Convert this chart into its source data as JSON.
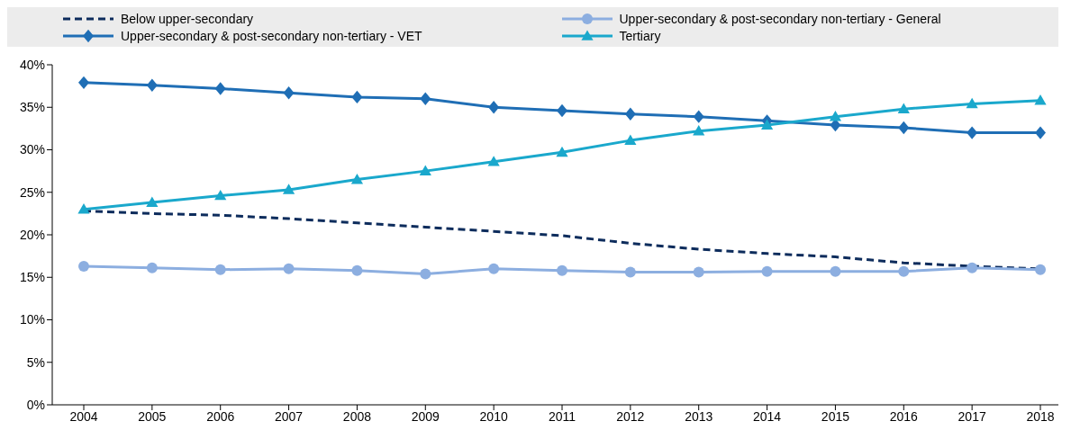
{
  "chart_data": {
    "type": "line",
    "categories": [
      "2004",
      "2005",
      "2006",
      "2007",
      "2008",
      "2009",
      "2010",
      "2011",
      "2012",
      "2013",
      "2014",
      "2015",
      "2016",
      "2017",
      "2018"
    ],
    "series": [
      {
        "name": "Below upper-secondary",
        "color": "#0d2c5c",
        "line_style": "dashed",
        "marker": "none",
        "values": [
          22.8,
          22.5,
          22.3,
          21.9,
          21.4,
          20.9,
          20.4,
          19.9,
          19.0,
          18.3,
          17.8,
          17.4,
          16.7,
          16.3,
          16.0
        ]
      },
      {
        "name": "Upper-secondary & post-secondary non-tertiary - VET",
        "color": "#1f6eb5",
        "line_style": "solid",
        "marker": "diamond",
        "values": [
          37.9,
          37.6,
          37.2,
          36.7,
          36.2,
          36.0,
          35.0,
          34.6,
          34.2,
          33.9,
          33.4,
          32.9,
          32.6,
          32.0,
          32.0
        ]
      },
      {
        "name": "Upper-secondary & post-secondary non-tertiary - General",
        "color": "#8caee0",
        "line_style": "solid",
        "marker": "circle",
        "values": [
          16.3,
          16.1,
          15.9,
          16.0,
          15.8,
          15.4,
          16.0,
          15.8,
          15.6,
          15.6,
          15.7,
          15.7,
          15.7,
          16.1,
          15.9
        ]
      },
      {
        "name": "Tertiary",
        "color": "#1aa8cc",
        "line_style": "solid",
        "marker": "triangle",
        "values": [
          23.0,
          23.8,
          24.6,
          25.3,
          26.5,
          27.5,
          28.6,
          29.7,
          31.1,
          32.2,
          32.9,
          33.9,
          34.8,
          35.4,
          35.8
        ]
      }
    ],
    "ylim": [
      0,
      40
    ],
    "yticks": [
      {
        "value": 0,
        "label": "0%"
      },
      {
        "value": 5,
        "label": "5%"
      },
      {
        "value": 10,
        "label": "10%"
      },
      {
        "value": 15,
        "label": "15%"
      },
      {
        "value": 20,
        "label": "20%"
      },
      {
        "value": 25,
        "label": "25%"
      },
      {
        "value": 30,
        "label": "30%"
      },
      {
        "value": 35,
        "label": "35%"
      },
      {
        "value": 40,
        "label": "40%"
      }
    ],
    "grid": false,
    "legend": "top"
  }
}
